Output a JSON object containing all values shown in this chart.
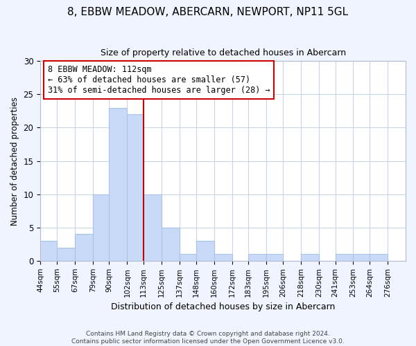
{
  "title": "8, EBBW MEADOW, ABERCARN, NEWPORT, NP11 5GL",
  "subtitle": "Size of property relative to detached houses in Abercarn",
  "xlabel": "Distribution of detached houses by size in Abercarn",
  "ylabel": "Number of detached properties",
  "bar_edges": [
    44,
    55,
    67,
    79,
    90,
    102,
    113,
    125,
    137,
    148,
    160,
    172,
    183,
    195,
    206,
    218,
    230,
    241,
    253,
    264,
    276
  ],
  "bar_heights": [
    3,
    2,
    4,
    10,
    23,
    22,
    10,
    5,
    1,
    3,
    1,
    0,
    1,
    1,
    0,
    1,
    0,
    1,
    1,
    1
  ],
  "bar_color": "#c9daf8",
  "bar_edgecolor": "#a8c4e8",
  "vline_x": 113,
  "vline_color": "#cc0000",
  "ylim": [
    0,
    30
  ],
  "yticks": [
    0,
    5,
    10,
    15,
    20,
    25,
    30
  ],
  "tick_labels": [
    "44sqm",
    "55sqm",
    "67sqm",
    "79sqm",
    "90sqm",
    "102sqm",
    "113sqm",
    "125sqm",
    "137sqm",
    "148sqm",
    "160sqm",
    "172sqm",
    "183sqm",
    "195sqm",
    "206sqm",
    "218sqm",
    "230sqm",
    "241sqm",
    "253sqm",
    "264sqm",
    "276sqm"
  ],
  "annotation_title": "8 EBBW MEADOW: 112sqm",
  "annotation_line1": "← 63% of detached houses are smaller (57)",
  "annotation_line2": "31% of semi-detached houses are larger (28) →",
  "annotation_box_edgecolor": "#cc0000",
  "footer1": "Contains HM Land Registry data © Crown copyright and database right 2024.",
  "footer2": "Contains public sector information licensed under the Open Government Licence v3.0.",
  "bg_color": "#f0f4ff",
  "plot_bg_color": "#ffffff",
  "grid_color": "#c8d4e8"
}
